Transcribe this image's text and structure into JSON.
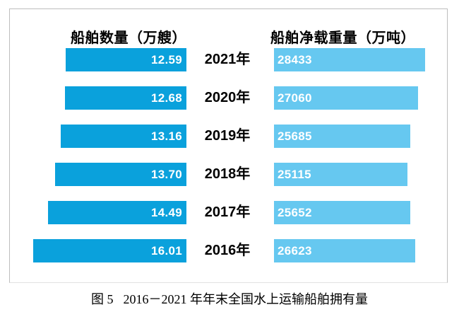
{
  "chart_data": {
    "type": "bar",
    "variant": "tornado",
    "orientation": "horizontal",
    "grid": false,
    "legend_position": "none",
    "value_labels": "inside-bars",
    "categories": [
      "2021年",
      "2020年",
      "2019年",
      "2018年",
      "2017年",
      "2016年"
    ],
    "series": [
      {
        "name": "船舶数量（万艘）",
        "side": "left",
        "color": "#0aa1dc",
        "values": [
          12.59,
          12.68,
          13.16,
          13.7,
          14.49,
          16.01
        ],
        "labels": [
          "12.59",
          "12.68",
          "13.16",
          "13.70",
          "14.49",
          "16.01"
        ],
        "axis_max": 16.01
      },
      {
        "name": "船舶净载重量（万吨）",
        "side": "right",
        "color": "#66c8f0",
        "values": [
          28433,
          27060,
          25685,
          25115,
          25652,
          26623
        ],
        "labels": [
          "28433",
          "27060",
          "25685",
          "25115",
          "25652",
          "26623"
        ],
        "axis_max": 28433
      }
    ],
    "title": "图 5　2016－2021 年年末全国水上运输船舶拥有量"
  },
  "caption": {
    "figure_label": "图 5",
    "text": "2016－2021 年年末全国水上运输船舶拥有量"
  },
  "colors": {
    "left_bar": "#0aa1dc",
    "right_bar": "#66c8f0",
    "panel_border": "#bdbdbd",
    "value_text": "#ffffff",
    "label_text": "#000000"
  }
}
